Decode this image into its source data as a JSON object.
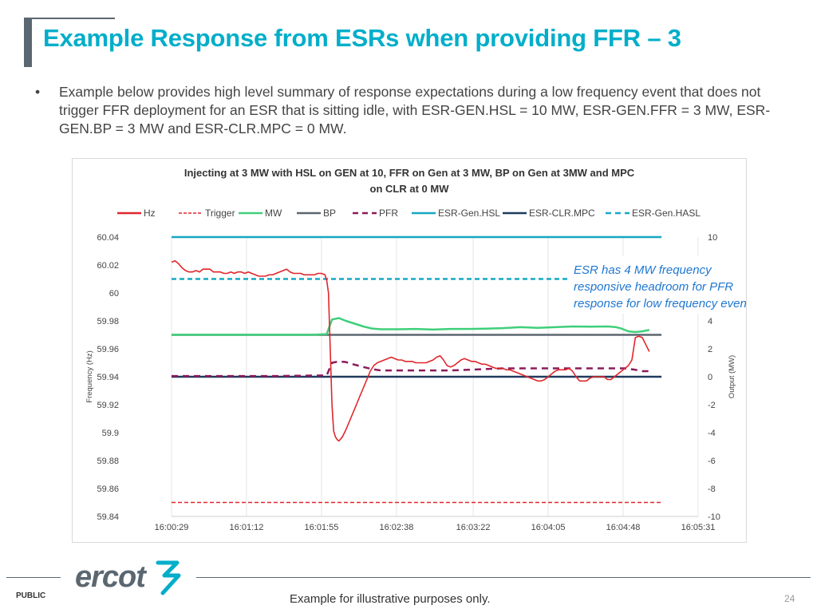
{
  "slide": {
    "title": "Example Response from ESRs when providing FFR – 3",
    "bullet_marker": "•",
    "bullet_text": "Example below provides high level summary of response expectations during a low frequency event that does not trigger FFR deployment for an ESR that is sitting idle, with ESR-GEN.HSL = 10 MW, ESR-GEN.FFR = 3 MW, ESR-GEN.BP = 3 MW and ESR-CLR.MPC = 0 MW.",
    "callout_lines": [
      "ESR has 4 MW frequency",
      "responsive headroom for PFR",
      "response for low frequency events."
    ]
  },
  "footer": {
    "public_label": "PUBLIC",
    "logo_text": "ercot",
    "note": "Example for illustrative purposes only.",
    "page_number": "24"
  },
  "colors": {
    "title": "#00aeca",
    "Hz": "#e0262b",
    "Trigger": "#e0262b",
    "MW": "#3fcf7a",
    "BP": "#5b6770",
    "PFR": "#8b1a5a",
    "ESR-Gen.HSL": "#17a8c4",
    "ESR-CLR.MPC": "#1f3a5f",
    "ESR-Gen.HASL": "#17a8c4",
    "callout": "#1f77d0",
    "logo": "#5b6770",
    "logo_mark": "#00aeca"
  },
  "chart_data": {
    "type": "line",
    "title_lines": [
      "Injecting at 3 MW with HSL on GEN at 10, FFR on Gen at 3 MW, BP on Gen at 3MW and MPC",
      "on CLR at 0 MW"
    ],
    "xlabel": "",
    "ylabel_left": "Frequency (Hz)",
    "ylabel_right": "Output (MW)",
    "x_ticks": [
      "16:00:29",
      "16:01:12",
      "16:01:55",
      "16:02:38",
      "16:03:22",
      "16:04:05",
      "16:04:48",
      "16:05:31"
    ],
    "x_tick_seconds": [
      0,
      43,
      86,
      129,
      173,
      216,
      259,
      302
    ],
    "xlim_seconds": [
      0,
      302
    ],
    "y_left": {
      "min": 59.84,
      "max": 60.04,
      "ticks": [
        "60.04",
        "60.02",
        "60",
        "59.98",
        "59.96",
        "59.94",
        "59.92",
        "59.9",
        "59.88",
        "59.86",
        "59.84"
      ]
    },
    "y_right": {
      "min": -10,
      "max": 10,
      "ticks": [
        "10",
        "",
        "",
        "4",
        "2",
        "0",
        "-2",
        "-4",
        "-6",
        "-8",
        "-10"
      ]
    },
    "legend_position": "top",
    "grid": "vertical",
    "series": [
      {
        "name": "Hz",
        "axis": "left",
        "style": "solid",
        "x": [
          0,
          2,
          4,
          6,
          8,
          10,
          12,
          14,
          16,
          18,
          20,
          22,
          24,
          26,
          28,
          30,
          32,
          34,
          36,
          38,
          40,
          42,
          44,
          46,
          48,
          50,
          52,
          54,
          56,
          58,
          60,
          62,
          64,
          66,
          68,
          70,
          72,
          74,
          76,
          78,
          80,
          82,
          84,
          86,
          88,
          89,
          90,
          91,
          92,
          93,
          94,
          95,
          96,
          98,
          100,
          102,
          104,
          106,
          108,
          110,
          112,
          114,
          116,
          118,
          120,
          122,
          124,
          126,
          128,
          130,
          132,
          134,
          136,
          138,
          140,
          142,
          144,
          146,
          148,
          150,
          152,
          154,
          156,
          158,
          160,
          162,
          164,
          166,
          168,
          170,
          172,
          174,
          176,
          178,
          180,
          182,
          184,
          186,
          188,
          190,
          192,
          194,
          196,
          198,
          200,
          202,
          204,
          206,
          208,
          210,
          212,
          214,
          216,
          218,
          220,
          222,
          224,
          226,
          228,
          230,
          232,
          234,
          236,
          238,
          240,
          242,
          244,
          246,
          248,
          250,
          252,
          254,
          256,
          258,
          260,
          262,
          264,
          266,
          268,
          270,
          272,
          274
        ],
        "y": [
          60.022,
          60.023,
          60.021,
          60.018,
          60.016,
          60.015,
          60.015,
          60.016,
          60.015,
          60.017,
          60.017,
          60.017,
          60.015,
          60.015,
          60.015,
          60.014,
          60.014,
          60.015,
          60.014,
          60.015,
          60.015,
          60.014,
          60.015,
          60.014,
          60.013,
          60.012,
          60.012,
          60.012,
          60.013,
          60.013,
          60.014,
          60.015,
          60.016,
          60.017,
          60.015,
          60.014,
          60.014,
          60.014,
          60.013,
          60.013,
          60.013,
          60.013,
          60.014,
          60.014,
          60.013,
          60.009,
          60.0,
          59.96,
          59.92,
          59.901,
          59.897,
          59.895,
          59.894,
          59.897,
          59.902,
          59.908,
          59.914,
          59.92,
          59.926,
          59.932,
          59.938,
          59.944,
          59.948,
          59.95,
          59.951,
          59.952,
          59.953,
          59.954,
          59.953,
          59.952,
          59.952,
          59.951,
          59.951,
          59.951,
          59.95,
          59.95,
          59.95,
          59.95,
          59.951,
          59.952,
          59.954,
          59.955,
          59.952,
          59.948,
          59.947,
          59.948,
          59.95,
          59.952,
          59.953,
          59.952,
          59.951,
          59.951,
          59.95,
          59.949,
          59.949,
          59.948,
          59.947,
          59.946,
          59.946,
          59.946,
          59.945,
          59.945,
          59.944,
          59.943,
          59.942,
          59.941,
          59.94,
          59.939,
          59.938,
          59.937,
          59.937,
          59.938,
          59.94,
          59.942,
          59.944,
          59.945,
          59.945,
          59.945,
          59.946,
          59.944,
          59.94,
          59.937,
          59.937,
          59.937,
          59.939,
          59.94,
          59.94,
          59.94,
          59.94,
          59.938,
          59.938,
          59.94,
          59.942,
          59.944,
          59.946,
          59.948,
          59.952,
          59.968,
          59.969,
          59.968,
          59.963,
          59.958
        ]
      },
      {
        "name": "Trigger",
        "axis": "left",
        "style": "dash",
        "x": [
          0,
          281
        ],
        "y": [
          59.85,
          59.85
        ]
      },
      {
        "name": "MW",
        "axis": "right",
        "style": "solid",
        "x": [
          0,
          10,
          20,
          40,
          60,
          80,
          89,
          92,
          96,
          100,
          105,
          110,
          115,
          120,
          130,
          140,
          150,
          160,
          170,
          180,
          190,
          200,
          210,
          220,
          230,
          240,
          250,
          255,
          258,
          262,
          266,
          270,
          274
        ],
        "y": [
          3.0,
          3.0,
          3.0,
          3.0,
          3.0,
          3.0,
          3.05,
          4.1,
          4.2,
          4.0,
          3.8,
          3.6,
          3.45,
          3.4,
          3.4,
          3.42,
          3.38,
          3.42,
          3.42,
          3.44,
          3.48,
          3.55,
          3.5,
          3.55,
          3.6,
          3.58,
          3.6,
          3.55,
          3.45,
          3.25,
          3.2,
          3.25,
          3.35
        ]
      },
      {
        "name": "BP",
        "axis": "right",
        "style": "solid",
        "x": [
          0,
          281
        ],
        "y": [
          3.0,
          3.0
        ]
      },
      {
        "name": "PFR",
        "axis": "right",
        "style": "dash",
        "x": [
          0,
          30,
          60,
          89,
          92,
          96,
          100,
          104,
          110,
          115,
          120,
          130,
          140,
          150,
          160,
          170,
          180,
          190,
          200,
          210,
          220,
          230,
          240,
          250,
          255,
          260,
          266,
          270,
          274
        ],
        "y": [
          0.05,
          0.05,
          0.05,
          0.1,
          1.0,
          1.1,
          1.05,
          0.9,
          0.7,
          0.55,
          0.45,
          0.45,
          0.45,
          0.45,
          0.45,
          0.5,
          0.55,
          0.6,
          0.6,
          0.6,
          0.6,
          0.6,
          0.6,
          0.6,
          0.6,
          0.6,
          0.5,
          0.4,
          0.4
        ]
      },
      {
        "name": "ESR-Gen.HSL",
        "axis": "right",
        "style": "solid",
        "x": [
          0,
          281
        ],
        "y": [
          10,
          10
        ]
      },
      {
        "name": "ESR-CLR.MPC",
        "axis": "right",
        "style": "solid",
        "x": [
          0,
          281
        ],
        "y": [
          0,
          0
        ]
      },
      {
        "name": "ESR-Gen.HASL",
        "axis": "right",
        "style": "dash",
        "x": [
          0,
          281
        ],
        "y": [
          7,
          7
        ]
      }
    ]
  }
}
